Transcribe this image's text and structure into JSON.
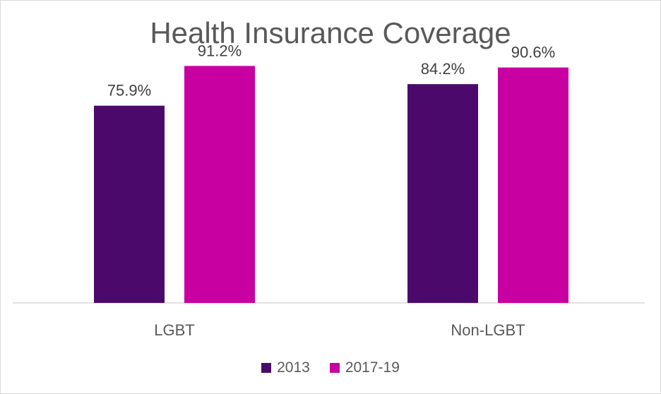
{
  "chart_data": {
    "type": "bar",
    "title": "Health Insurance Coverage",
    "categories": [
      "LGBT",
      "Non-LGBT"
    ],
    "series": [
      {
        "name": "2013",
        "color": "#4b0a6b",
        "values": [
          75.9,
          84.2
        ],
        "labels": [
          "75.9%",
          "84.2%"
        ]
      },
      {
        "name": "2017-19",
        "color": "#c800a1",
        "values": [
          91.2,
          90.6
        ],
        "labels": [
          "91.2%",
          "90.6%"
        ]
      }
    ],
    "ylim": [
      0,
      100
    ],
    "grid": false,
    "legend": "bottom",
    "xlabel": "",
    "ylabel": ""
  }
}
